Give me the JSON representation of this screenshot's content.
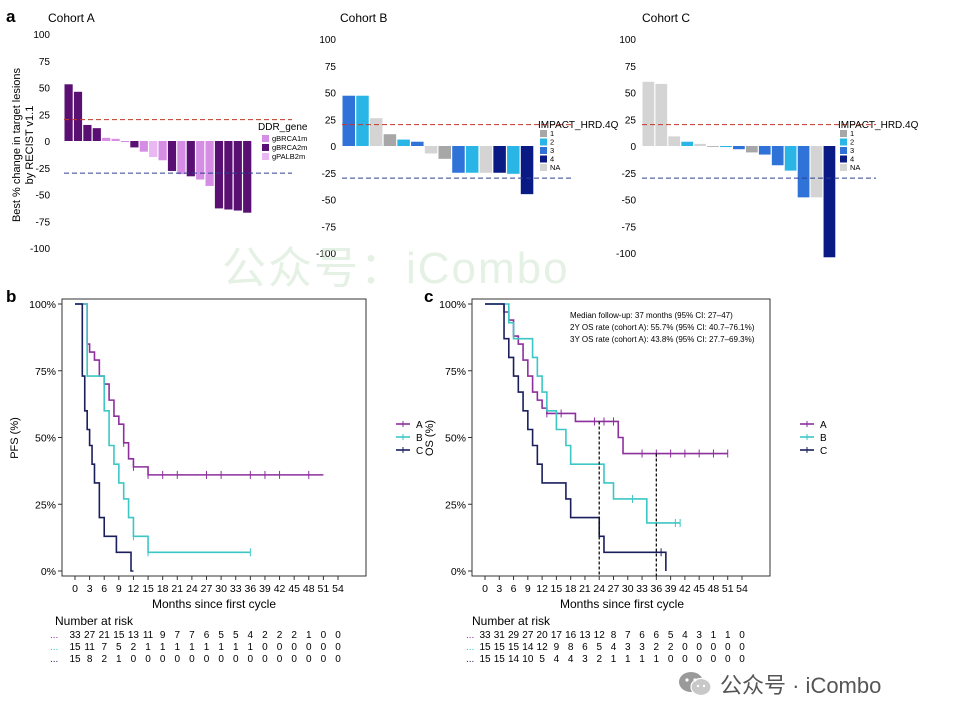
{
  "panels": {
    "a": "a",
    "b": "b",
    "c": "c"
  },
  "colors": {
    "A": "#8e2f9e",
    "B": "#3cc7c5",
    "C": "#1a1f5c",
    "ref_red": "#c0392b",
    "ref_blue": "#2c3e91",
    "gBRCA1m": "#d58ee4",
    "gBRCA2m": "#5a0f73",
    "gPALB2m": "#e9b7f2",
    "hrd1": "#a7a7a7",
    "hrd2": "#29b6e6",
    "hrd3": "#2f73d9",
    "hrd4": "#0a1a84",
    "hrdNA": "#d4d4d4"
  },
  "waterfall_axis": {
    "ylabel_lines": [
      "Best % change in target lesions",
      "by RECIST v1.1"
    ],
    "ticks": [
      100,
      75,
      50,
      25,
      0,
      -25,
      -50,
      -75,
      -100
    ],
    "ref_lines": [
      20,
      -30
    ]
  },
  "legends": {
    "ddr": {
      "title": "DDR_gene",
      "items": [
        "gBRCA1m",
        "gBRCA2m",
        "gPALB2m"
      ]
    },
    "hrd": {
      "title": "IMPACT_HRD.4Q",
      "items": [
        "1",
        "2",
        "3",
        "4",
        "NA"
      ]
    }
  },
  "km_common": {
    "xlabel": "Months since first cycle",
    "x_ticks": [
      0,
      3,
      6,
      9,
      12,
      15,
      18,
      21,
      24,
      27,
      30,
      33,
      36,
      39,
      42,
      45,
      48,
      51,
      54
    ],
    "y_ticks": [
      "0%",
      "25%",
      "50%",
      "75%",
      "100%"
    ],
    "risk_title": "Number at risk",
    "legend": [
      "A",
      "B",
      "C"
    ]
  },
  "km_b": {
    "ylabel": "PFS (%)"
  },
  "km_c": {
    "ylabel": "OS (%)",
    "annotations": [
      "Median follow-up: 37 months (95% CI: 27–47)",
      "2Y OS rate (cohort A): 55.7% (95% CI: 40.7–76.1%)",
      "3Y OS rate (cohort A): 43.8% (95% CI: 27.7–69.3%)"
    ]
  },
  "watermark": {
    "center": "公众号：iCombo",
    "corner": "公众号 · iCombo"
  },
  "chart_data": [
    {
      "id": "cohortA",
      "type": "bar",
      "title": "Cohort A",
      "ylim": [
        -100,
        100
      ],
      "values": [
        53,
        46,
        15,
        12,
        3,
        2,
        -1,
        -6,
        -10,
        -15,
        -18,
        -28,
        -31,
        -33,
        -36,
        -42,
        -63,
        -64,
        -65,
        -67
      ],
      "groups": [
        "gBRCA2m",
        "gBRCA2m",
        "gBRCA2m",
        "gBRCA2m",
        "gBRCA1m",
        "gBRCA1m",
        "gBRCA1m",
        "gBRCA2m",
        "gBRCA1m",
        "gPALB2m",
        "gBRCA1m",
        "gBRCA2m",
        "gBRCA1m",
        "gBRCA2m",
        "gBRCA1m",
        "gBRCA1m",
        "gBRCA2m",
        "gBRCA2m",
        "gBRCA2m",
        "gBRCA2m"
      ]
    },
    {
      "id": "cohortB",
      "type": "bar",
      "title": "Cohort B",
      "ylim": [
        -100,
        100
      ],
      "values": [
        47,
        47,
        26,
        11,
        6,
        4,
        -7,
        -12,
        -25,
        -25,
        -25,
        -25,
        -26,
        -45
      ],
      "groups": [
        "3",
        "2",
        "NA",
        "1",
        "2",
        "3",
        "NA",
        "1",
        "3",
        "2",
        "NA",
        "4",
        "2",
        "4"
      ]
    },
    {
      "id": "cohortC",
      "type": "bar",
      "title": "Cohort C",
      "ylim": [
        -100,
        100
      ],
      "values": [
        60,
        58,
        9,
        4,
        2,
        0,
        -1,
        -3,
        -6,
        -8,
        -18,
        -23,
        -48,
        -48,
        -104
      ],
      "groups": [
        "NA",
        "NA",
        "NA",
        "2",
        "NA",
        "1",
        "2",
        "3",
        "1",
        "3",
        "3",
        "2",
        "3",
        "NA",
        "4"
      ]
    },
    {
      "id": "pfs",
      "type": "line",
      "ylabel": "PFS (%)",
      "xlabel": "Months since first cycle",
      "xlim": [
        0,
        54
      ],
      "ylim": [
        0,
        100
      ],
      "series": [
        {
          "name": "A",
          "points": [
            [
              0,
              100
            ],
            [
              2,
              100
            ],
            [
              2.5,
              85
            ],
            [
              3,
              82
            ],
            [
              4,
              79
            ],
            [
              5,
              73
            ],
            [
              6,
              70
            ],
            [
              7,
              64
            ],
            [
              8,
              58
            ],
            [
              9,
              55
            ],
            [
              10,
              48
            ],
            [
              11,
              42
            ],
            [
              12,
              39
            ],
            [
              14,
              39
            ],
            [
              15,
              36
            ],
            [
              51,
              36
            ]
          ],
          "censor": [
            6,
            10,
            12,
            15,
            18,
            21,
            27,
            30,
            36,
            39,
            42,
            48
          ]
        },
        {
          "name": "B",
          "points": [
            [
              0,
              100
            ],
            [
              2,
              100
            ],
            [
              2.5,
              73
            ],
            [
              5,
              73
            ],
            [
              6,
              60
            ],
            [
              7,
              47
            ],
            [
              8,
              40
            ],
            [
              9,
              33
            ],
            [
              10,
              27
            ],
            [
              11,
              20
            ],
            [
              12,
              13
            ],
            [
              14,
              13
            ],
            [
              15,
              7
            ],
            [
              36,
              7
            ]
          ],
          "censor": [
            12,
            15,
            36
          ]
        },
        {
          "name": "C",
          "points": [
            [
              0,
              100
            ],
            [
              1,
              100
            ],
            [
              1.5,
              73
            ],
            [
              2,
              60
            ],
            [
              2.5,
              53
            ],
            [
              3,
              47
            ],
            [
              3.5,
              40
            ],
            [
              4,
              33
            ],
            [
              5,
              20
            ],
            [
              6,
              13
            ],
            [
              8,
              13
            ],
            [
              8.5,
              7
            ],
            [
              11,
              7
            ],
            [
              11.5,
              0
            ],
            [
              12,
              0
            ]
          ],
          "censor": []
        }
      ],
      "risk_table": {
        "A": [
          33,
          27,
          21,
          15,
          13,
          11,
          9,
          7,
          7,
          6,
          5,
          5,
          4,
          2,
          2,
          2,
          1,
          0,
          0
        ],
        "B": [
          15,
          11,
          7,
          5,
          2,
          1,
          1,
          1,
          1,
          1,
          1,
          1,
          1,
          0,
          0,
          0,
          0,
          0,
          0
        ],
        "C": [
          15,
          8,
          2,
          1,
          0,
          0,
          0,
          0,
          0,
          0,
          0,
          0,
          0,
          0,
          0,
          0,
          0,
          0,
          0
        ]
      }
    },
    {
      "id": "os",
      "type": "line",
      "ylabel": "OS (%)",
      "xlabel": "Months since first cycle",
      "xlim": [
        0,
        54
      ],
      "ylim": [
        0,
        100
      ],
      "series": [
        {
          "name": "A",
          "points": [
            [
              0,
              100
            ],
            [
              3,
              100
            ],
            [
              4,
              97
            ],
            [
              5,
              94
            ],
            [
              6,
              88
            ],
            [
              7,
              85
            ],
            [
              8,
              79
            ],
            [
              9,
              73
            ],
            [
              10,
              67
            ],
            [
              11,
              64
            ],
            [
              12,
              61
            ],
            [
              13,
              59
            ],
            [
              18,
              59
            ],
            [
              19,
              56
            ],
            [
              27,
              56
            ],
            [
              28,
              50
            ],
            [
              29,
              44
            ],
            [
              51,
              44
            ]
          ],
          "censor": [
            13,
            16,
            23,
            25,
            27,
            33,
            36,
            39,
            42,
            45,
            48,
            51
          ]
        },
        {
          "name": "B",
          "points": [
            [
              0,
              100
            ],
            [
              4,
              100
            ],
            [
              5,
              93
            ],
            [
              6,
              87
            ],
            [
              9,
              87
            ],
            [
              10,
              80
            ],
            [
              11,
              73
            ],
            [
              12,
              67
            ],
            [
              13,
              60
            ],
            [
              15,
              53
            ],
            [
              17,
              47
            ],
            [
              18,
              40
            ],
            [
              24,
              40
            ],
            [
              25,
              33
            ],
            [
              27,
              27
            ],
            [
              33,
              27
            ],
            [
              34,
              18
            ],
            [
              41,
              18
            ]
          ],
          "censor": [
            31,
            40,
            41
          ]
        },
        {
          "name": "C",
          "points": [
            [
              0,
              100
            ],
            [
              3,
              100
            ],
            [
              4,
              87
            ],
            [
              5,
              80
            ],
            [
              6,
              73
            ],
            [
              7,
              67
            ],
            [
              8,
              60
            ],
            [
              9,
              53
            ],
            [
              10,
              47
            ],
            [
              11,
              40
            ],
            [
              12,
              33
            ],
            [
              16,
              33
            ],
            [
              17,
              27
            ],
            [
              18,
              20
            ],
            [
              23,
              20
            ],
            [
              24,
              13
            ],
            [
              25,
              7
            ],
            [
              38,
              7
            ],
            [
              38,
              0
            ]
          ],
          "censor": [
            37
          ]
        }
      ],
      "ref_lines_x": [
        24,
        36
      ],
      "risk_table": {
        "A": [
          33,
          31,
          29,
          27,
          20,
          17,
          16,
          13,
          12,
          8,
          7,
          6,
          6,
          5,
          4,
          3,
          1,
          1,
          0
        ],
        "B": [
          15,
          15,
          15,
          14,
          12,
          9,
          8,
          6,
          5,
          4,
          3,
          3,
          2,
          2,
          0,
          0,
          0,
          0,
          0
        ],
        "C": [
          15,
          15,
          14,
          10,
          5,
          4,
          4,
          3,
          2,
          1,
          1,
          1,
          1,
          0,
          0,
          0,
          0,
          0,
          0
        ]
      }
    }
  ]
}
